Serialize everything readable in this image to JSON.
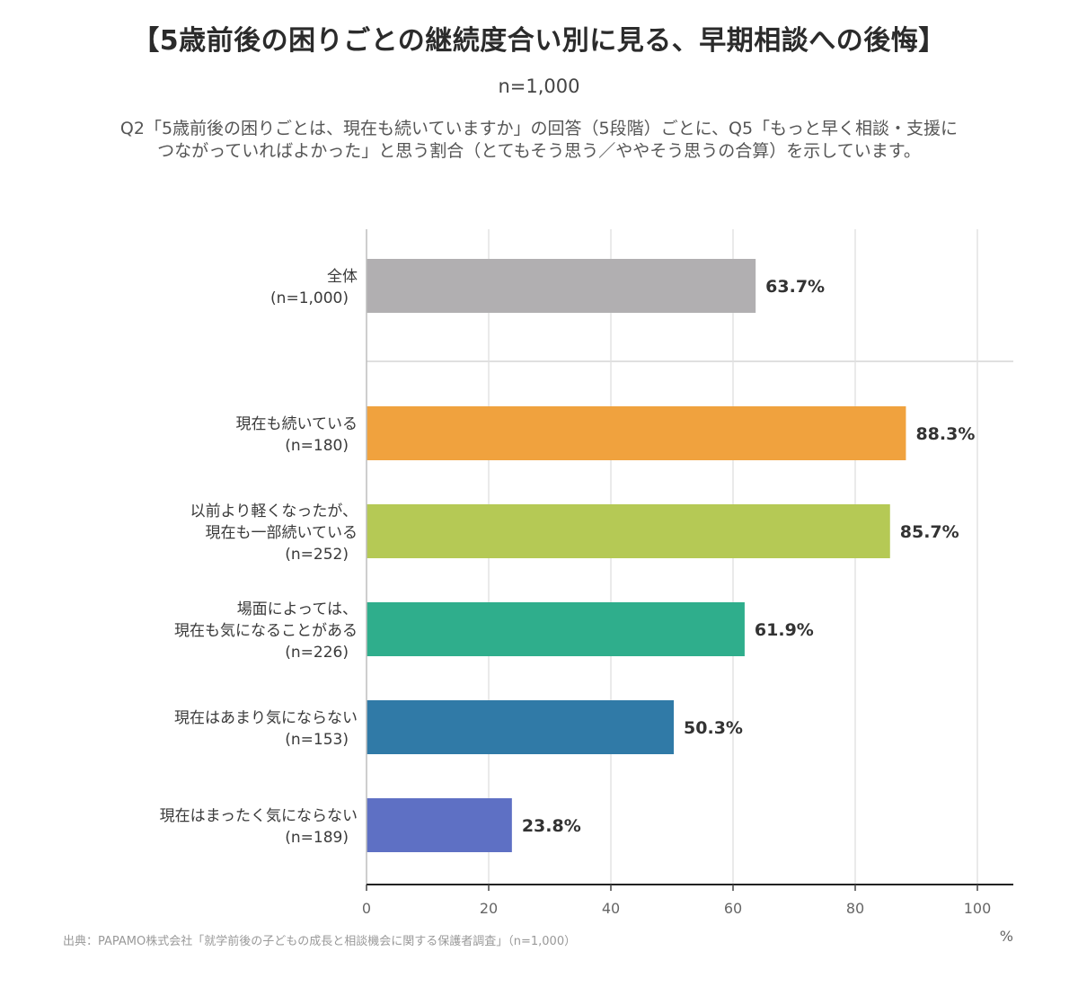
{
  "title": "【5歳前後の困りごとの継続度合い別に見る、早期相談への後悔】",
  "sample_size": "n=1,000",
  "description": [
    "Q2「5歳前後の困りごとは、現在も続いていますか」の回答（5段階）ごとに、Q5「もっと早く相談・支援に",
    "つながっていればよかった」と思う割合（とてもそう思う／ややそう思うの合算）を示しています。"
  ],
  "source": "出典：PAPAMO株式会社「就学前後の子どもの成長と相談機会に関する保護者調査」（n=1,000）",
  "chart_data": {
    "type": "bar",
    "orientation": "horizontal",
    "title": "",
    "xlabel": "",
    "ylabel": "",
    "unit_label": "%",
    "xlim": [
      0,
      100
    ],
    "ticks": [
      0,
      20,
      40,
      60,
      80,
      100
    ],
    "grid": true,
    "legend": "none",
    "categories": [
      [
        "全体",
        "(n=1,000)"
      ],
      [
        "現在も続いている",
        "(n=180)"
      ],
      [
        "以前より軽くなったが、",
        "現在も一部続いている",
        "(n=252)"
      ],
      [
        "場面によっては、",
        "現在も気になることがある",
        "(n=226)"
      ],
      [
        "現在はあまり気にならない",
        "(n=153)"
      ],
      [
        "現在はまったく気にならない",
        "(n=189)"
      ]
    ],
    "values": [
      63.7,
      88.3,
      85.7,
      61.9,
      50.3,
      23.8
    ],
    "value_labels": [
      "63.7%",
      "88.3%",
      "85.7%",
      "61.9%",
      "50.3%",
      "23.8%"
    ],
    "colors": [
      "#b1afb1",
      "#f0a23e",
      "#b5c955",
      "#2fae8c",
      "#307aa7",
      "#5e70c4"
    ],
    "separator_after_index": 0
  }
}
